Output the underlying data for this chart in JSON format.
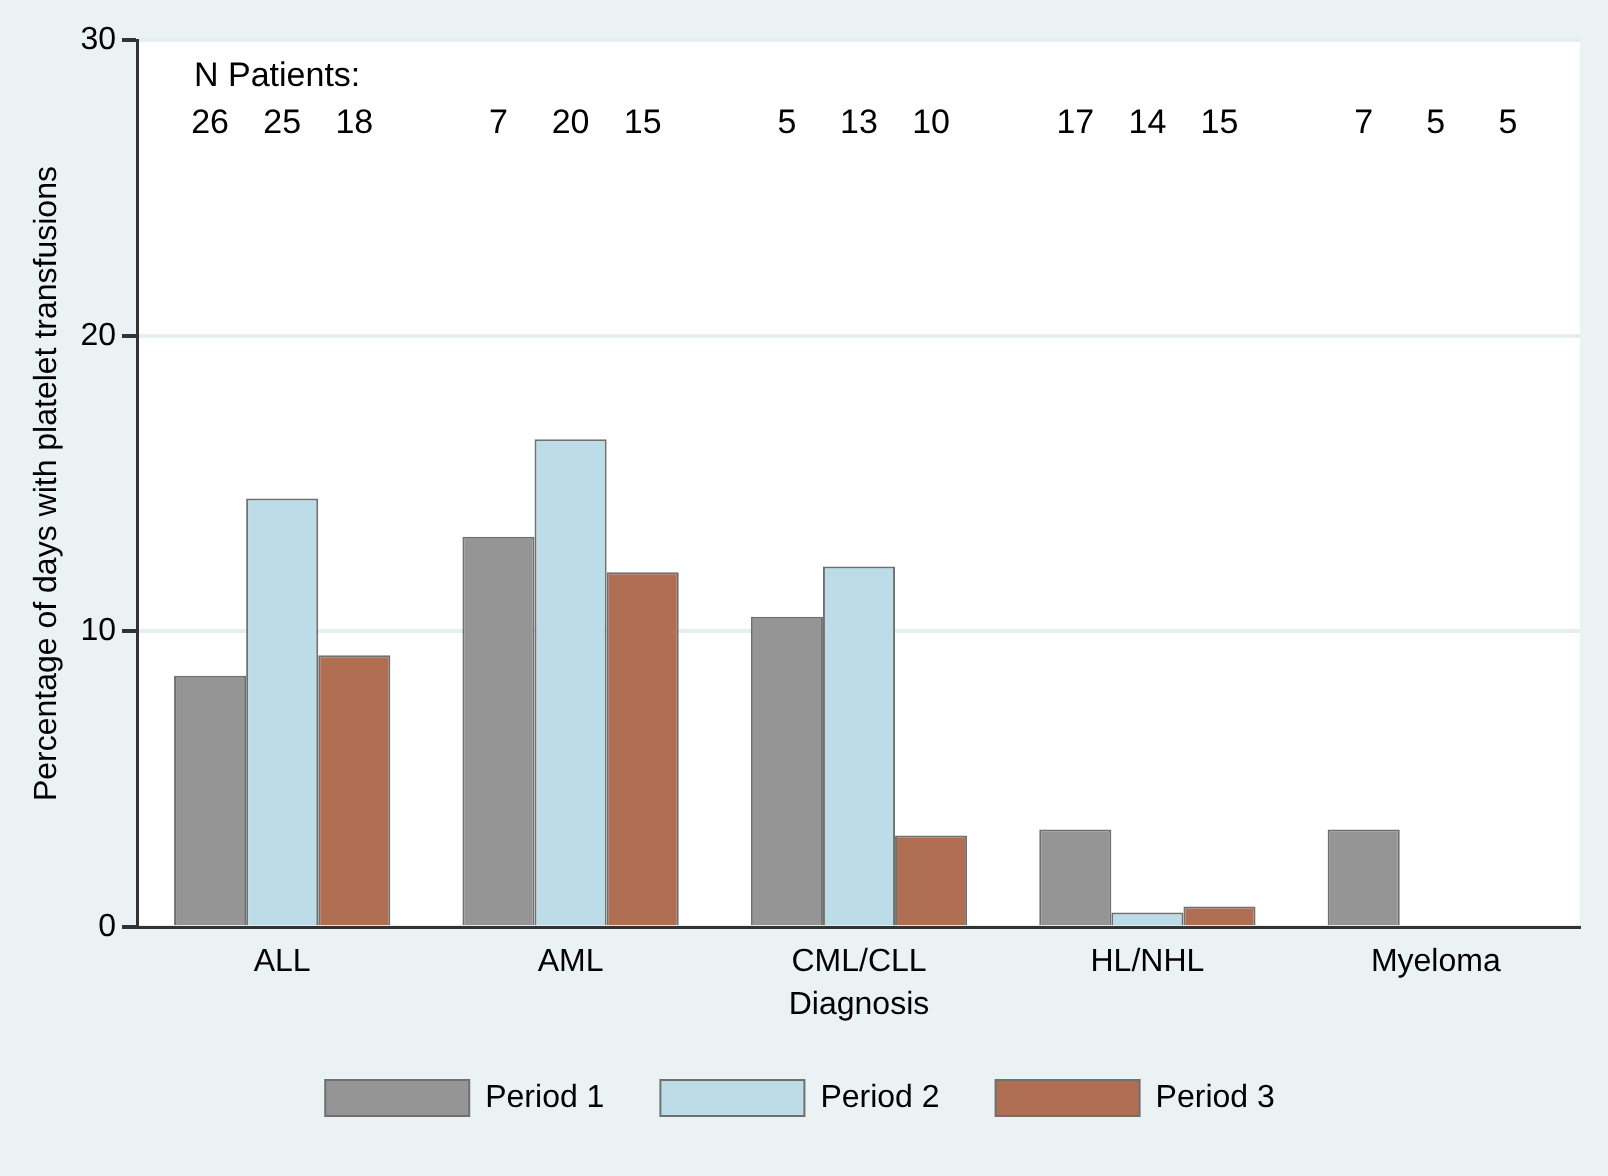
{
  "chart_data": {
    "type": "bar",
    "xlabel": "Diagnosis",
    "ylabel": "Percentage of days with platelet transfusions",
    "categories": [
      "ALL",
      "AML",
      "CML/CLL",
      "HL/NHL",
      "Myeloma"
    ],
    "series": [
      {
        "name": "Period 1",
        "color": "#959595",
        "values": [
          8.5,
          13.2,
          10.5,
          3.3,
          3.3
        ]
      },
      {
        "name": "Period 2",
        "color": "#bcdde8",
        "values": [
          14.5,
          16.5,
          12.2,
          0.5,
          0
        ]
      },
      {
        "name": "Period 3",
        "color": "#b06e52",
        "values": [
          9.2,
          12.0,
          3.1,
          0.7,
          0
        ]
      }
    ],
    "ylim": [
      0,
      30
    ],
    "yticks": [
      0,
      10,
      20,
      30
    ],
    "grid": "y",
    "legend": "bottom",
    "annotations": [
      "N Patients:",
      "26",
      "25",
      "18",
      "7",
      "20",
      "15",
      "5",
      "13",
      "10",
      "17",
      "14",
      "15",
      "7",
      "5",
      "5"
    ]
  }
}
